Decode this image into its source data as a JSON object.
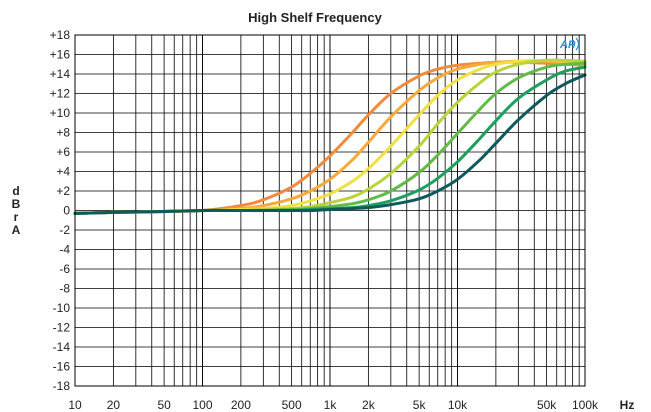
{
  "chart_data": {
    "type": "line",
    "title": "High Shelf Frequency",
    "xlabel": "Hz",
    "ylabel": "dBrA",
    "xscale": "log",
    "xlim": [
      10,
      100000
    ],
    "ylim": [
      -18,
      18
    ],
    "grid": true,
    "x_tick_values": [
      10,
      20,
      50,
      100,
      200,
      500,
      1000,
      2000,
      5000,
      10000,
      50000,
      100000
    ],
    "x_tick_labels": [
      "10",
      "20",
      "50",
      "100",
      "200",
      "500",
      "1k",
      "2k",
      "5k",
      "10k",
      "50k",
      "100k"
    ],
    "y_tick_values": [
      18,
      16,
      14,
      12,
      10,
      8,
      6,
      4,
      2,
      0,
      -2,
      -4,
      -6,
      -8,
      -10,
      -12,
      -14,
      -16,
      -18
    ],
    "y_tick_labels": [
      "+18",
      "+16",
      "+14",
      "+12",
      "+10",
      "+8",
      "+6",
      "+4",
      "+2",
      "0",
      "-2",
      "-4",
      "-6",
      "-8",
      "-10",
      "-12",
      "-14",
      "-16",
      "-18"
    ],
    "x": [
      10,
      20,
      50,
      100,
      200,
      300,
      500,
      700,
      1000,
      1500,
      2000,
      3000,
      5000,
      7000,
      10000,
      15000,
      20000,
      30000,
      50000,
      70000,
      100000
    ],
    "series": [
      {
        "color": "#f08a3c",
        "values": [
          -0.3,
          -0.2,
          -0.1,
          0,
          0.5,
          1.1,
          2.4,
          3.8,
          5.6,
          8.0,
          9.8,
          12.0,
          13.8,
          14.5,
          14.9,
          15.1,
          15.2,
          15.2,
          15.1,
          15.0,
          14.9
        ]
      },
      {
        "color": "#f7a93a",
        "values": [
          -0.3,
          -0.2,
          -0.1,
          0,
          0.2,
          0.5,
          1.2,
          2.0,
          3.2,
          5.2,
          7.0,
          9.6,
          12.3,
          13.6,
          14.5,
          15.0,
          15.2,
          15.3,
          15.3,
          15.1,
          15.0
        ]
      },
      {
        "color": "#f0e040",
        "values": [
          -0.3,
          -0.2,
          -0.1,
          0,
          0.1,
          0.2,
          0.5,
          1.0,
          1.7,
          3.0,
          4.3,
          6.6,
          9.8,
          11.8,
          13.4,
          14.5,
          15.0,
          15.3,
          15.4,
          15.3,
          15.2
        ]
      },
      {
        "color": "#b8d43a",
        "values": [
          -0.3,
          -0.2,
          -0.1,
          0,
          0,
          0.1,
          0.2,
          0.4,
          0.8,
          1.4,
          2.2,
          3.8,
          6.6,
          8.9,
          11.1,
          13.1,
          14.2,
          15.0,
          15.4,
          15.4,
          15.3
        ]
      },
      {
        "color": "#62bb46",
        "values": [
          -0.3,
          -0.2,
          -0.1,
          0,
          0,
          0,
          0.1,
          0.2,
          0.4,
          0.7,
          1.1,
          2.0,
          3.9,
          5.7,
          7.9,
          10.4,
          12.0,
          13.6,
          14.7,
          15.0,
          15.1
        ]
      },
      {
        "color": "#1e9f5e",
        "values": [
          -0.3,
          -0.2,
          -0.1,
          0,
          0,
          0,
          0,
          0.1,
          0.2,
          0.3,
          0.5,
          1.0,
          2.1,
          3.3,
          5.0,
          7.4,
          9.2,
          11.5,
          13.4,
          14.3,
          14.7
        ]
      },
      {
        "color": "#0e5a5a",
        "values": [
          -0.3,
          -0.2,
          -0.1,
          0,
          0,
          0,
          0,
          0,
          0.1,
          0.2,
          0.3,
          0.6,
          1.2,
          2.0,
          3.2,
          5.2,
          6.9,
          9.3,
          11.8,
          13.0,
          13.9
        ]
      }
    ]
  },
  "logo": {
    "text": "AP",
    "color": "#1f8fd6"
  }
}
